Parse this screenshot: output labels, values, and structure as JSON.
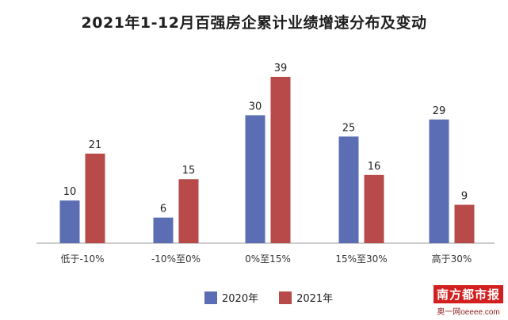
{
  "chart_data": {
    "type": "bar",
    "title": "2021年1-12月百强房企累计业绩增速分布及变动",
    "categories": [
      "低于-10%",
      "-10%至0%",
      "0%至15%",
      "15%至30%",
      "高于30%"
    ],
    "series": [
      {
        "name": "2020年",
        "values": [
          10,
          6,
          30,
          25,
          29
        ],
        "color": "#5b6db3"
      },
      {
        "name": "2021年",
        "values": [
          21,
          15,
          39,
          16,
          9
        ],
        "color": "#b84a4a"
      }
    ],
    "ylim": [
      0,
      39
    ],
    "grid": false,
    "legend_position": "bottom"
  },
  "watermark": {
    "logo": "南方都市报",
    "site": "奥一网oeeee.com"
  }
}
